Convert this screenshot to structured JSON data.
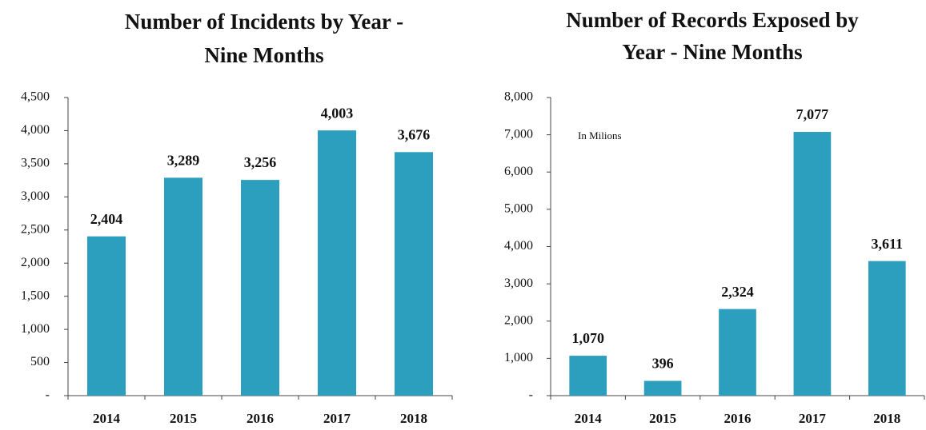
{
  "chart_data": [
    {
      "type": "bar",
      "title": [
        "Number of Incidents by Year -",
        "Nine Months"
      ],
      "categories": [
        "2014",
        "2015",
        "2016",
        "2017",
        "2018"
      ],
      "values": [
        2404,
        3289,
        3256,
        4003,
        3676
      ],
      "value_labels": [
        "2,404",
        "3,289",
        "3,256",
        "4,003",
        "3,676"
      ],
      "color": "#2b9fbd",
      "ylim": [
        0,
        4500
      ],
      "yticks": [
        {
          "value": 0,
          "label": "-"
        },
        500,
        {
          "value": 1000,
          "label": "1,000"
        },
        {
          "value": 1500,
          "label": "1,500"
        },
        {
          "value": 2000,
          "label": "2,000"
        },
        {
          "value": 2500,
          "label": "2,500"
        },
        {
          "value": 3000,
          "label": "3,000"
        },
        {
          "value": 3500,
          "label": "3,500"
        },
        {
          "value": 4000,
          "label": "4,000"
        },
        {
          "value": 4500,
          "label": "4,500"
        }
      ],
      "grid": false
    },
    {
      "type": "bar",
      "title": [
        "Number of Records Exposed by",
        "Year - Nine Months"
      ],
      "annotation": "In Milions",
      "categories": [
        "2014",
        "2015",
        "2016",
        "2017",
        "2018"
      ],
      "values": [
        1070,
        396,
        2324,
        7077,
        3611
      ],
      "value_labels": [
        "1,070",
        "396",
        "2,324",
        "7,077",
        "3,611"
      ],
      "color": "#2b9fbd",
      "ylim": [
        0,
        8000
      ],
      "yticks": [
        {
          "value": 0,
          "label": "-"
        },
        {
          "value": 1000,
          "label": "1,000"
        },
        {
          "value": 2000,
          "label": "2,000"
        },
        {
          "value": 3000,
          "label": "3,000"
        },
        {
          "value": 4000,
          "label": "4,000"
        },
        {
          "value": 5000,
          "label": "5,000"
        },
        {
          "value": 6000,
          "label": "6,000"
        },
        {
          "value": 7000,
          "label": "7,000"
        },
        {
          "value": 8000,
          "label": "8,000"
        }
      ],
      "grid": false
    }
  ]
}
